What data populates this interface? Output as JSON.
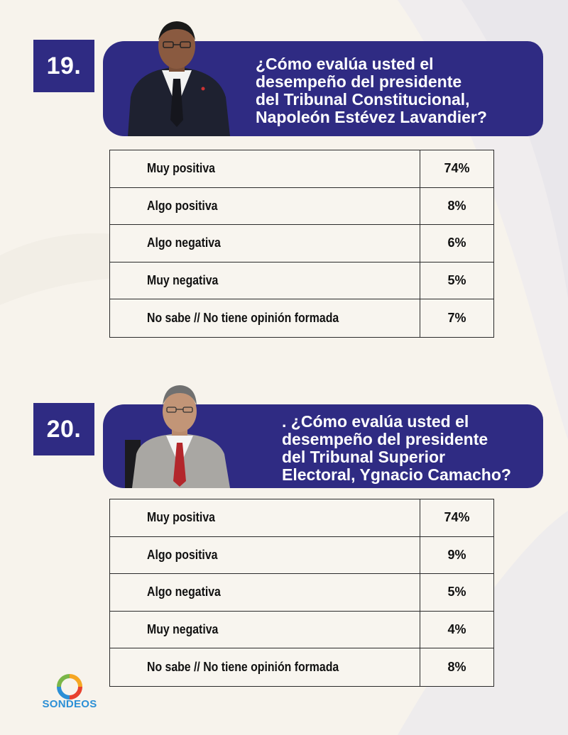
{
  "questions": [
    {
      "number": "19.",
      "question": "¿Cómo evalúa usted el\ndesempeño del presidente\ndel Tribunal Constitucional,\nNapoleón Estévez Lavandier?",
      "rows": [
        {
          "label": "Muy positiva",
          "value": "74%"
        },
        {
          "label": "Algo positiva",
          "value": "8%"
        },
        {
          "label": "Algo negativa",
          "value": "6%"
        },
        {
          "label": "Muy negativa",
          "value": "5%"
        },
        {
          "label": "No sabe // No tiene opinión formada",
          "value": "7%"
        }
      ]
    },
    {
      "number": "20.",
      "question": ". ¿Cómo evalúa usted el\ndesempeño del presidente\ndel Tribunal Superior\nElectoral,  Ygnacio Camacho?",
      "rows": [
        {
          "label": "Muy positiva",
          "value": "74%"
        },
        {
          "label": "Algo positiva",
          "value": "9%"
        },
        {
          "label": "Algo negativa",
          "value": "5%"
        },
        {
          "label": "Muy negativa",
          "value": "4%"
        },
        {
          "label": "No sabe // No tiene opinión formada",
          "value": "8%"
        }
      ]
    }
  ],
  "logo": {
    "text": "SONDEOS",
    "icon": "ring-logo-icon"
  },
  "colors": {
    "banner": "#2f2b83",
    "background": "#f7f3ec",
    "logo_text": "#2b8fd6"
  }
}
